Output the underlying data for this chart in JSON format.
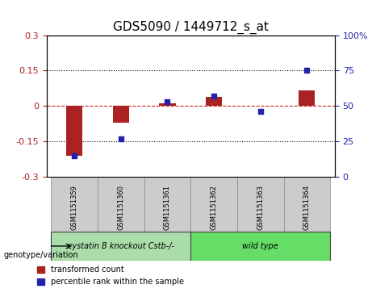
{
  "title": "GDS5090 / 1449712_s_at",
  "samples": [
    "GSM1151359",
    "GSM1151360",
    "GSM1151361",
    "GSM1151362",
    "GSM1151363",
    "GSM1151364"
  ],
  "transformed_counts": [
    -0.21,
    -0.07,
    0.01,
    0.04,
    0.0,
    0.065
  ],
  "percentile_ranks": [
    15,
    27,
    53,
    57,
    46,
    75
  ],
  "groups": [
    {
      "label": "cystatin B knockout Cstb-/-",
      "samples": [
        0,
        1,
        2
      ],
      "color": "#aaddaa"
    },
    {
      "label": "wild type",
      "samples": [
        3,
        4,
        5
      ],
      "color": "#66dd66"
    }
  ],
  "ylim_left": [
    -0.3,
    0.3
  ],
  "ylim_right": [
    0,
    100
  ],
  "yticks_left": [
    -0.3,
    -0.15,
    0,
    0.15,
    0.3
  ],
  "yticks_right": [
    0,
    25,
    50,
    75,
    100
  ],
  "bar_color": "#aa2222",
  "scatter_color": "#2222aa",
  "zero_line_color": "#cc2222",
  "dotted_line_color": "#111111",
  "background_color": "#ffffff",
  "plot_bg": "#ffffff",
  "legend_label_bar": "transformed count",
  "legend_label_scatter": "percentile rank within the sample",
  "genotype_label": "genotype/variation",
  "group_label_fontsize": 9,
  "title_fontsize": 11
}
